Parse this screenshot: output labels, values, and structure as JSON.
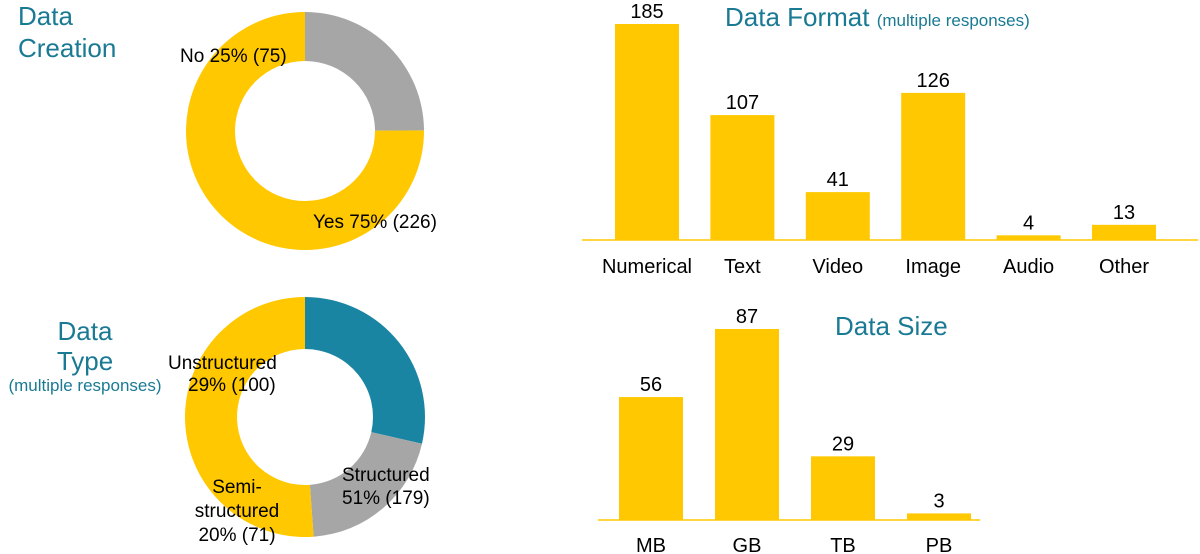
{
  "colors": {
    "accent": "#ffc800",
    "gray": "#a6a6a6",
    "teal": "#1a85a3",
    "title": "#1a7a93"
  },
  "titles": {
    "creation": [
      "Data",
      "Creation"
    ],
    "type": [
      "Data",
      "Type"
    ],
    "type_sub": "(multiple responses)",
    "format": "Data Format",
    "format_sub": "(multiple responses)",
    "size": "Data Size"
  },
  "chart_data": [
    {
      "type": "pie",
      "title": "Data Creation",
      "slices": [
        {
          "name": "No",
          "percent": "25%",
          "count": "(75)",
          "value": 75,
          "color": "#a6a6a6"
        },
        {
          "name": "Yes",
          "percent": "75%",
          "count": "(226)",
          "value": 226,
          "color": "#ffc800"
        }
      ]
    },
    {
      "type": "pie",
      "title": "Data Type (multiple responses)",
      "slices": [
        {
          "name": "Unstructured",
          "percent": "29%",
          "count": "(100)",
          "value": 100,
          "color": "#1a85a3"
        },
        {
          "name": "Semi-structured",
          "percent": "20%",
          "count": "(71)",
          "value": 71,
          "color": "#a6a6a6"
        },
        {
          "name": "Structured",
          "percent": "51%",
          "count": "(179)",
          "value": 179,
          "color": "#ffc800"
        }
      ]
    },
    {
      "type": "bar",
      "title": "Data Format (multiple responses)",
      "categories": [
        "Numerical",
        "Text",
        "Video",
        "Image",
        "Audio",
        "Other"
      ],
      "values": [
        185,
        107,
        41,
        126,
        4,
        13
      ],
      "color": "#ffc800"
    },
    {
      "type": "bar",
      "title": "Data Size",
      "categories": [
        "MB",
        "GB",
        "TB",
        "PB"
      ],
      "values": [
        56,
        87,
        29,
        3
      ],
      "color": "#ffc800"
    }
  ]
}
